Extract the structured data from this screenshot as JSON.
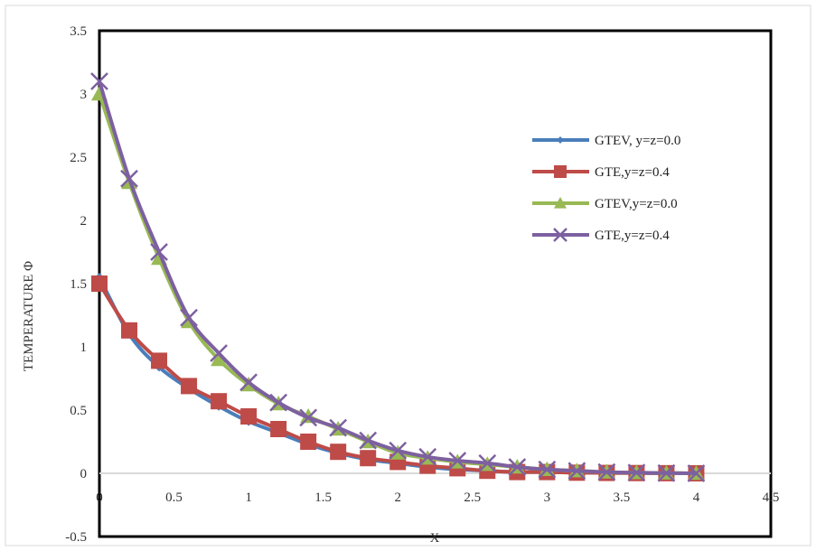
{
  "chart_data": {
    "type": "line",
    "xlabel": "X",
    "ylabel": "TEMPERATURE Φ",
    "xlim": [
      0,
      4.5
    ],
    "ylim": [
      -0.5,
      3.5
    ],
    "x_ticks": [
      "0",
      "0.5",
      "1",
      "1.5",
      "2",
      "2.5",
      "3",
      "3.5",
      "4",
      "4.5"
    ],
    "y_ticks": [
      "-0.5",
      "0",
      "0.5",
      "1",
      "1.5",
      "2",
      "2.5",
      "3",
      "3.5"
    ],
    "grid": false,
    "legend_position": "right",
    "x": [
      0,
      0.2,
      0.4,
      0.6,
      0.8,
      1.0,
      1.2,
      1.4,
      1.6,
      1.8,
      2.0,
      2.2,
      2.4,
      2.6,
      2.8,
      3.0,
      3.2,
      3.4,
      3.6,
      3.8,
      4.0
    ],
    "series": [
      {
        "name": "GTEV, y=z=0.0",
        "color": "#4a7ebb",
        "marker": "diamond",
        "values": [
          1.55,
          1.1,
          0.84,
          0.67,
          0.53,
          0.41,
          0.32,
          0.23,
          0.16,
          0.11,
          0.08,
          0.05,
          0.03,
          0.02,
          0.01,
          0.01,
          0.005,
          0.003,
          0.002,
          0.001,
          0.0
        ]
      },
      {
        "name": "GTE,y=z=0.4",
        "color": "#be4b48",
        "marker": "square",
        "values": [
          1.5,
          1.13,
          0.89,
          0.69,
          0.57,
          0.45,
          0.35,
          0.25,
          0.17,
          0.12,
          0.09,
          0.06,
          0.04,
          0.02,
          0.01,
          0.01,
          0.005,
          0.003,
          0.002,
          0.001,
          0.0
        ]
      },
      {
        "name": "GTEV,y=z=0.0",
        "color": "#98b954",
        "marker": "triangle",
        "values": [
          3.0,
          2.3,
          1.7,
          1.2,
          0.9,
          0.7,
          0.55,
          0.45,
          0.35,
          0.25,
          0.16,
          0.12,
          0.09,
          0.07,
          0.05,
          0.03,
          0.02,
          0.01,
          0.005,
          0.002,
          0.0
        ]
      },
      {
        "name": "GTE,y=z=0.4",
        "color": "#7d60a0",
        "marker": "x",
        "values": [
          3.1,
          2.33,
          1.75,
          1.23,
          0.95,
          0.72,
          0.56,
          0.44,
          0.36,
          0.26,
          0.18,
          0.13,
          0.1,
          0.08,
          0.05,
          0.03,
          0.02,
          0.01,
          0.005,
          0.002,
          0.0
        ]
      }
    ]
  }
}
